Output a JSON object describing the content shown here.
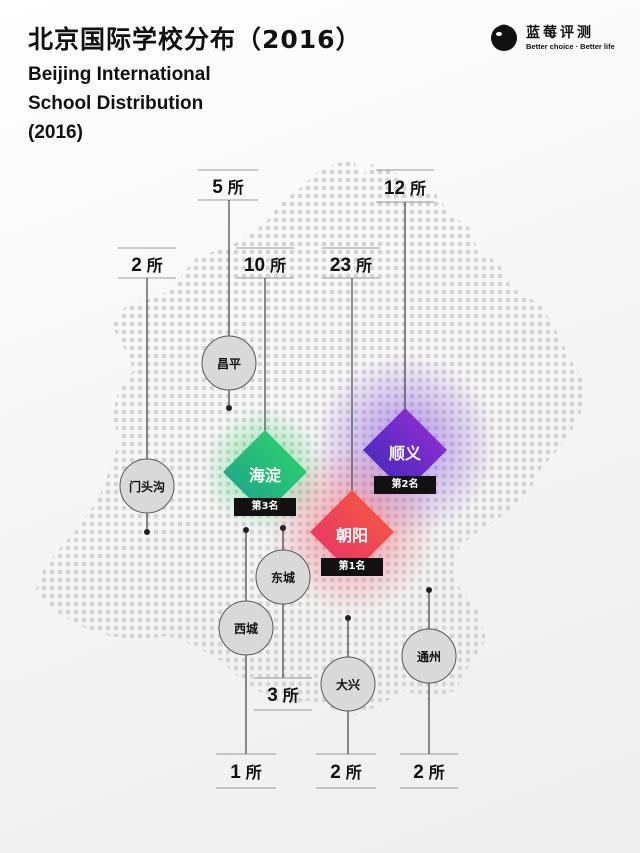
{
  "title_zh": "北京国际学校分布（2016）",
  "title_en": [
    "Beijing International",
    "School Distribution",
    "(2016)"
  ],
  "brand": {
    "name": "蓝莓评测",
    "slogan": "Better choice · Better life"
  },
  "unit": "所",
  "districts": [
    {
      "id": "mentougou",
      "name": "门头沟",
      "count": "2",
      "style": "circle"
    },
    {
      "id": "changping",
      "name": "昌平",
      "count": "5",
      "style": "circle"
    },
    {
      "id": "haidian",
      "name": "海淀",
      "count": "10",
      "style": "diamond",
      "rank": "第3名"
    },
    {
      "id": "chaoyang",
      "name": "朝阳",
      "count": "23",
      "style": "diamond",
      "rank": "第1名"
    },
    {
      "id": "shunyi",
      "name": "顺义",
      "count": "12",
      "style": "diamond",
      "rank": "第2名"
    },
    {
      "id": "dongcheng",
      "name": "东城",
      "count": "3",
      "style": "circle"
    },
    {
      "id": "xicheng",
      "name": "西城",
      "count": "1",
      "style": "circle"
    },
    {
      "id": "daxing",
      "name": "大兴",
      "count": "2",
      "style": "circle"
    },
    {
      "id": "tongzhou",
      "name": "通州",
      "count": "2",
      "style": "circle"
    }
  ],
  "colors": {
    "haidian": [
      "#1fa98a",
      "#2ad36a"
    ],
    "chaoyang": [
      "#e8406a",
      "#f24a3e"
    ],
    "shunyi": [
      "#3a2fbf",
      "#9a2cd8"
    ],
    "dot": "#d6d6d6",
    "line": "#333333"
  }
}
